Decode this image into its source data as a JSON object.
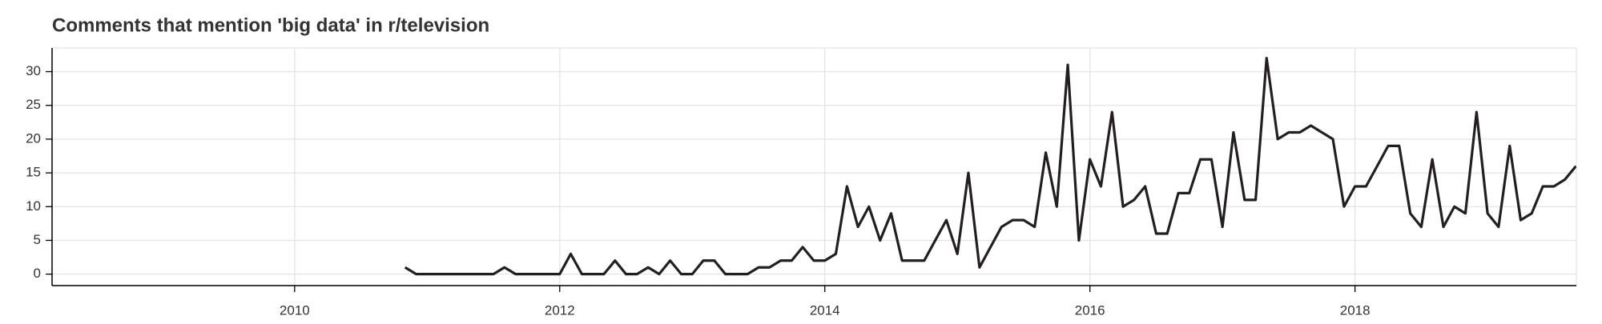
{
  "chart_data": {
    "type": "line",
    "title": "Comments that mention 'big data' in r/television",
    "x": [
      2010.833,
      2010.917,
      2011.0,
      2011.083,
      2011.167,
      2011.25,
      2011.333,
      2011.417,
      2011.5,
      2011.583,
      2011.667,
      2011.75,
      2011.833,
      2011.917,
      2012.0,
      2012.083,
      2012.167,
      2012.25,
      2012.333,
      2012.417,
      2012.5,
      2012.583,
      2012.667,
      2012.75,
      2012.833,
      2012.917,
      2013.0,
      2013.083,
      2013.167,
      2013.25,
      2013.333,
      2013.417,
      2013.5,
      2013.583,
      2013.667,
      2013.75,
      2013.833,
      2013.917,
      2014.0,
      2014.083,
      2014.167,
      2014.25,
      2014.333,
      2014.417,
      2014.5,
      2014.583,
      2014.667,
      2014.75,
      2014.833,
      2014.917,
      2015.0,
      2015.083,
      2015.167,
      2015.25,
      2015.333,
      2015.417,
      2015.5,
      2015.583,
      2015.667,
      2015.75,
      2015.833,
      2015.917,
      2016.0,
      2016.083,
      2016.167,
      2016.25,
      2016.333,
      2016.417,
      2016.5,
      2016.583,
      2016.667,
      2016.75,
      2016.833,
      2016.917,
      2017.0,
      2017.083,
      2017.167,
      2017.25,
      2017.333,
      2017.417,
      2017.5,
      2017.583,
      2017.667,
      2017.75,
      2017.833,
      2017.917,
      2018.0,
      2018.083,
      2018.167,
      2018.25,
      2018.333,
      2018.417,
      2018.5,
      2018.583,
      2018.667,
      2018.75,
      2018.833,
      2018.917,
      2019.0,
      2019.083,
      2019.167,
      2019.25,
      2019.333,
      2019.417,
      2019.5,
      2019.583,
      2019.667
    ],
    "series": [
      {
        "color": "#231f20",
        "values": [
          1,
          0,
          0,
          0,
          0,
          0,
          0,
          0,
          0,
          1,
          0,
          0,
          0,
          0,
          0,
          3,
          0,
          0,
          0,
          2,
          0,
          0,
          1,
          0,
          2,
          0,
          0,
          2,
          2,
          0,
          0,
          0,
          1,
          1,
          2,
          2,
          4,
          2,
          2,
          3,
          13,
          7,
          10,
          5,
          9,
          2,
          2,
          2,
          5,
          8,
          3,
          15,
          1,
          4,
          7,
          8,
          8,
          7,
          18,
          10,
          31,
          5,
          17,
          13,
          24,
          10,
          11,
          13,
          6,
          6,
          12,
          12,
          17,
          17,
          7,
          21,
          11,
          11,
          32,
          20,
          21,
          21,
          22,
          21,
          20,
          10,
          13,
          13,
          16,
          19,
          19,
          9,
          7,
          17,
          7,
          10,
          9,
          24,
          9,
          7,
          19,
          8,
          9,
          13,
          13,
          14,
          16
        ]
      }
    ],
    "xlim": [
      2008.17,
      2019.67
    ],
    "xticks": [
      2010,
      2012,
      2014,
      2016,
      2018
    ],
    "ylim": [
      -1.7,
      33.5
    ],
    "yticks": [
      0,
      5,
      10,
      15,
      20,
      25,
      30
    ],
    "grid": true
  }
}
